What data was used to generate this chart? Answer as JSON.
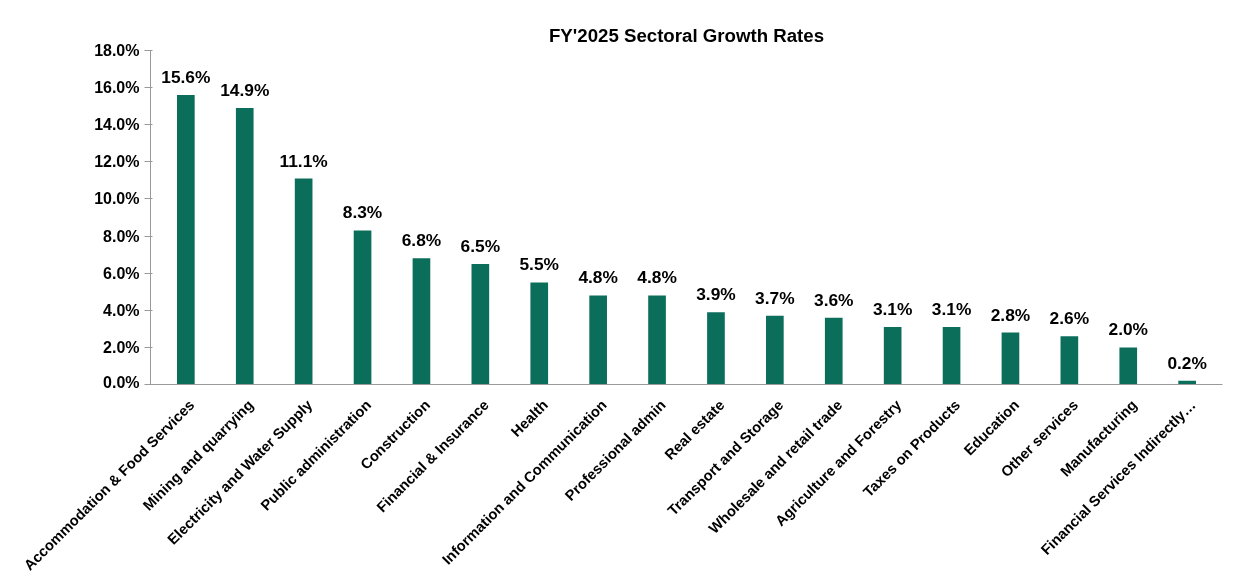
{
  "chart_data": {
    "type": "bar",
    "title": "FY'2025 Sectoral Growth Rates",
    "categories": [
      "Accommodation & Food Services",
      "Mining and quarrying",
      "Electricity and Water Supply",
      "Public administration",
      "Construction",
      "Financial & Insurance",
      "Health",
      "Information and Communication",
      "Professional admin",
      "Real estate",
      "Transport and Storage",
      "Wholesale and retail trade",
      "Agriculture and Forestry",
      "Taxes on Products",
      "Education",
      "Other services",
      "Manufacturing",
      "Financial Services Indirectly…"
    ],
    "values": [
      15.6,
      14.9,
      11.1,
      8.3,
      6.8,
      6.5,
      5.5,
      4.8,
      4.8,
      3.9,
      3.7,
      3.6,
      3.1,
      3.1,
      2.8,
      2.6,
      2.0,
      0.2
    ],
    "value_labels": [
      "15.6%",
      "14.9%",
      "11.1%",
      "8.3%",
      "6.8%",
      "6.5%",
      "5.5%",
      "4.8%",
      "4.8%",
      "3.9%",
      "3.7%",
      "3.6%",
      "3.1%",
      "3.1%",
      "2.8%",
      "2.6%",
      "2.0%",
      "0.2%"
    ],
    "color": "#0b6e5a",
    "ylim": [
      0,
      18
    ],
    "yticks": [
      {
        "value": 0,
        "label": "0.0%"
      },
      {
        "value": 2,
        "label": "2.0%"
      },
      {
        "value": 4,
        "label": "4.0%"
      },
      {
        "value": 6,
        "label": "6.0%"
      },
      {
        "value": 8,
        "label": "8.0%"
      },
      {
        "value": 10,
        "label": "10.0%"
      },
      {
        "value": 12,
        "label": "12.0%"
      },
      {
        "value": 14,
        "label": "14.0%"
      },
      {
        "value": 16,
        "label": "16.0%"
      },
      {
        "value": 18,
        "label": "18.0%"
      }
    ],
    "grid": false
  }
}
